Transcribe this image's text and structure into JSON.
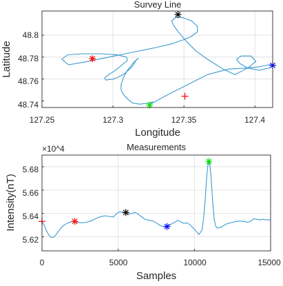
{
  "chart_data": [
    {
      "type": "line",
      "title": "Survey Line",
      "xlabel": "Longitude",
      "ylabel": "Latitude",
      "xlim": [
        127.25,
        127.4125
      ],
      "ylim": [
        48.734,
        48.822
      ],
      "xticks": [
        "127.25",
        "127.3",
        "127.35",
        "127.4"
      ],
      "yticks": [
        "48.74",
        "48.76",
        "48.78",
        "48.8"
      ],
      "grid": true,
      "line_color": "#3b9ad1",
      "series": [
        {
          "x": [
            127.3264,
            127.3375,
            127.3513,
            127.3666,
            127.3811,
            127.3943,
            127.4029,
            127.406,
            127.4105,
            127.413,
            127.41,
            127.4029,
            127.395,
            127.3895,
            127.3871,
            127.3903,
            127.3972,
            127.4007,
            127.395,
            127.3858,
            127.3776,
            127.3666,
            127.3581,
            127.3513,
            127.346,
            127.3427,
            127.3414,
            127.3438,
            127.349,
            127.3554,
            127.3595,
            127.3595,
            127.3554,
            127.35,
            127.3414,
            127.3278,
            127.3122,
            127.2972,
            127.2822,
            127.2687,
            127.264,
            127.268,
            127.2784,
            127.291,
            127.303,
            127.3095,
            127.3102,
            127.3065,
            127.3018,
            127.297,
            127.2941,
            127.295,
            127.3007,
            127.3073,
            127.3134,
            127.3162,
            127.318,
            127.3168,
            127.3139,
            127.3102,
            127.3073,
            127.3057,
            127.3057,
            127.3073,
            127.3102,
            127.3139,
            127.319,
            127.325,
            127.3278,
            127.3264
          ],
          "y": [
            48.737,
            48.745,
            48.754,
            48.764,
            48.769,
            48.77,
            48.771,
            48.772,
            48.773,
            48.772,
            48.77,
            48.768,
            48.77,
            48.774,
            48.778,
            48.781,
            48.781,
            48.776,
            48.77,
            48.764,
            48.769,
            48.778,
            48.786,
            48.795,
            48.803,
            48.809,
            48.813,
            48.816,
            48.816,
            48.813,
            48.808,
            48.803,
            48.799,
            48.796,
            48.792,
            48.788,
            48.784,
            48.78,
            48.776,
            48.773,
            48.778,
            48.782,
            48.783,
            48.783,
            48.782,
            48.78,
            48.777,
            48.773,
            48.768,
            48.764,
            48.761,
            48.759,
            48.76,
            48.764,
            48.771,
            48.777,
            48.779,
            48.778,
            48.774,
            48.768,
            48.761,
            48.755,
            48.75,
            48.746,
            48.742,
            48.738,
            48.737,
            48.738,
            48.739,
            48.737
          ]
        }
      ],
      "markers": [
        {
          "x": 127.2855,
          "y": 48.7785,
          "color": "#ff0000",
          "shape": "asterisk"
        },
        {
          "x": 127.3507,
          "y": 48.7443,
          "color": "#ff0000",
          "shape": "plus"
        },
        {
          "x": 127.3258,
          "y": 48.7362,
          "color": "#00dd00",
          "shape": "asterisk"
        },
        {
          "x": 127.3458,
          "y": 48.8188,
          "color": "#000000",
          "shape": "asterisk"
        },
        {
          "x": 127.4125,
          "y": 48.7724,
          "color": "#0000ff",
          "shape": "asterisk"
        }
      ]
    },
    {
      "type": "line",
      "title": "Measurements",
      "xlabel": "Samples",
      "ylabel": "Intensity(nT)",
      "xlim": [
        0,
        15000
      ],
      "ylim": [
        56080,
        56900
      ],
      "axis_exponent": "×10^4",
      "xticks": [
        "0",
        "5000",
        "10000",
        "15000"
      ],
      "yticks": [
        "5.62",
        "5.64",
        "5.66",
        "5.68"
      ],
      "grid": true,
      "line_color": "#3b9ad1",
      "series": [
        {
          "x": [
            0,
            150,
            300,
            450,
            600,
            750,
            900,
            1100,
            1300,
            1500,
            1700,
            2000,
            2300,
            2600,
            2900,
            3200,
            3500,
            3800,
            4100,
            4400,
            4700,
            4900,
            5100,
            5300,
            5500,
            5700,
            5900,
            6100,
            6300,
            6500,
            6700,
            6900,
            7100,
            7300,
            7500,
            7700,
            7900,
            8100,
            8300,
            8500,
            8700,
            8900,
            9100,
            9300,
            9500,
            9700,
            9900,
            10100,
            10300,
            10500,
            10600,
            10700,
            10800,
            10900,
            11000,
            11100,
            11200,
            11300,
            11400,
            11500,
            11700,
            11900,
            12100,
            12300,
            12500,
            12700,
            12900,
            13100,
            13300,
            13500,
            13700,
            13900,
            14100,
            14300,
            14500,
            14700,
            15000
          ],
          "y": [
            56332,
            56300,
            56250,
            56215,
            56195,
            56195,
            56215,
            56250,
            56285,
            56305,
            56320,
            56330,
            56325,
            56320,
            56325,
            56335,
            56355,
            56370,
            56380,
            56375,
            56370,
            56400,
            56415,
            56410,
            56405,
            56395,
            56400,
            56410,
            56395,
            56375,
            56355,
            56345,
            56340,
            56335,
            56320,
            56300,
            56290,
            56288,
            56295,
            56310,
            56325,
            56340,
            56330,
            56315,
            56320,
            56305,
            56280,
            56250,
            56220,
            56260,
            56350,
            56500,
            56700,
            56840,
            56840,
            56700,
            56500,
            56350,
            56290,
            56275,
            56280,
            56295,
            56310,
            56318,
            56325,
            56330,
            56335,
            56335,
            56330,
            56325,
            56335,
            56355,
            56350,
            56345,
            56350,
            56345,
            56345
          ]
        }
      ],
      "markers": [
        {
          "x": 0,
          "y": 56332,
          "color": "#ff0000",
          "shape": "plus"
        },
        {
          "x": 2150,
          "y": 56332,
          "color": "#ff0000",
          "shape": "asterisk"
        },
        {
          "x": 5500,
          "y": 56408,
          "color": "#000000",
          "shape": "asterisk"
        },
        {
          "x": 8200,
          "y": 56288,
          "color": "#0000ff",
          "shape": "asterisk"
        },
        {
          "x": 10950,
          "y": 56845,
          "color": "#00dd00",
          "shape": "asterisk"
        }
      ]
    }
  ]
}
